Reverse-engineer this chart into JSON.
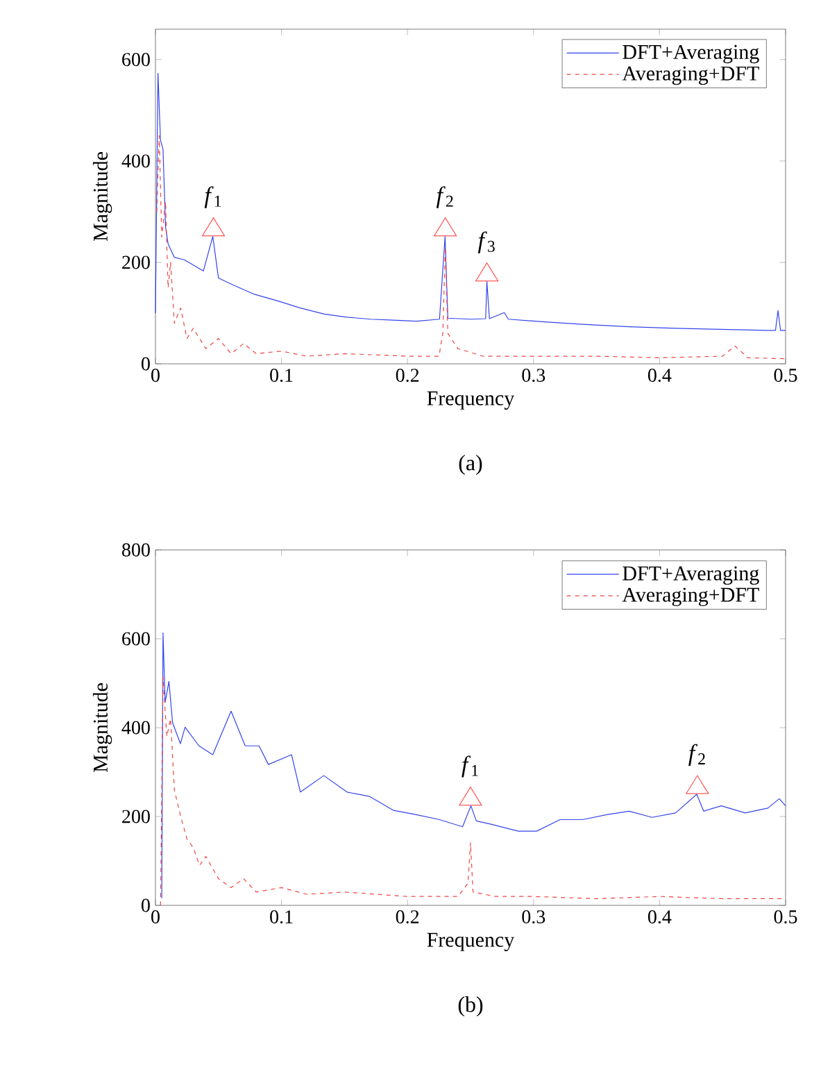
{
  "chart_data": [
    {
      "type": "line",
      "xlabel": "Frequency",
      "ylabel": "Magnitude",
      "xlim": [
        0,
        0.5
      ],
      "ylim": [
        0,
        660
      ],
      "xticks": [
        0,
        0.1,
        0.2,
        0.3,
        0.4,
        0.5
      ],
      "yticks": [
        0,
        200,
        400,
        600
      ],
      "legend": "top right",
      "grid": false,
      "series": [
        {
          "name": "DFT+Averaging",
          "color": "#3344ee",
          "line_style": "solid",
          "x": [
            0,
            0.002,
            0.004,
            0.006,
            0.008,
            0.01,
            0.015,
            0.023,
            0.038,
            0.0455,
            0.05,
            0.062,
            0.0786,
            0.097,
            0.115,
            0.134,
            0.152,
            0.171,
            0.189,
            0.207,
            0.2254,
            0.2298,
            0.232,
            0.25,
            0.262,
            0.263,
            0.265,
            0.2768,
            0.28,
            0.307,
            0.339,
            0.376,
            0.413,
            0.449,
            0.486,
            0.492,
            0.494,
            0.496,
            0.5
          ],
          "values": [
            100,
            573,
            441,
            423,
            270,
            237,
            210,
            205,
            183,
            251,
            169,
            155,
            137,
            124,
            110,
            98,
            92,
            88,
            86,
            84,
            88,
            251,
            90,
            88,
            89,
            162,
            89,
            101,
            88,
            83,
            78,
            73,
            70,
            68,
            66,
            66,
            105,
            66,
            66
          ]
        },
        {
          "name": "Averaging+DFT",
          "color": "#ee4444",
          "line_style": "dashed",
          "x": [
            0.001,
            0.003,
            0.005,
            0.008,
            0.01,
            0.012,
            0.015,
            0.02,
            0.025,
            0.03,
            0.04,
            0.05,
            0.06,
            0.07,
            0.08,
            0.1,
            0.12,
            0.15,
            0.2,
            0.225,
            0.228,
            0.23,
            0.232,
            0.24,
            0.26,
            0.3,
            0.35,
            0.4,
            0.45,
            0.46,
            0.47,
            0.5
          ],
          "values": [
            300,
            450,
            250,
            320,
            150,
            200,
            80,
            110,
            50,
            70,
            30,
            50,
            20,
            40,
            20,
            25,
            15,
            20,
            15,
            15,
            60,
            230,
            60,
            30,
            15,
            15,
            15,
            12,
            15,
            35,
            12,
            10
          ]
        }
      ],
      "annotations": [
        {
          "text": "*f*$_{1}$",
          "x": 0.046,
          "y": 251
        },
        {
          "text": "*f*$_{2}$",
          "x": 0.23,
          "y": 251
        },
        {
          "text": "*f*$_{3}$",
          "x": 0.263,
          "y": 162
        },
        "(a)"
      ]
    },
    {
      "type": "line",
      "xlabel": "Frequency",
      "ylabel": "Magnitude",
      "xlim": [
        0,
        0.5
      ],
      "ylim": [
        0,
        800
      ],
      "xticks": [
        0,
        0.1,
        0.2,
        0.3,
        0.4,
        0.5
      ],
      "yticks": [
        0,
        200,
        400,
        600,
        800
      ],
      "legend": "top right",
      "grid": false,
      "series": [
        {
          "name": "DFT+Averaging",
          "color": "#3344ee",
          "line_style": "solid",
          "x": [
            0.005,
            0.006,
            0.0077,
            0.0107,
            0.0136,
            0.0198,
            0.0235,
            0.0345,
            0.0455,
            0.06,
            0.0712,
            0.0822,
            0.0896,
            0.108,
            0.115,
            0.1336,
            0.152,
            0.17,
            0.1887,
            0.207,
            0.2254,
            0.2437,
            0.2503,
            0.2546,
            0.2657,
            0.288,
            0.3025,
            0.321,
            0.339,
            0.358,
            0.376,
            0.394,
            0.4127,
            0.4295,
            0.435,
            0.449,
            0.468,
            0.486,
            0.495,
            0.5
          ],
          "values": [
            16,
            613,
            457,
            504,
            411,
            364,
            401,
            359,
            339,
            437,
            359,
            359,
            317,
            339,
            255,
            292,
            255,
            245,
            214,
            204,
            193,
            177,
            224,
            190,
            183,
            167,
            167,
            193,
            193,
            204,
            212,
            198,
            208,
            250,
            212,
            224,
            208,
            219,
            240,
            224
          ]
        },
        {
          "name": "Averaging+DFT",
          "color": "#ee4444",
          "line_style": "dashed",
          "x": [
            0.004,
            0.006,
            0.009,
            0.012,
            0.015,
            0.02,
            0.025,
            0.03,
            0.035,
            0.04,
            0.05,
            0.06,
            0.07,
            0.08,
            0.1,
            0.12,
            0.15,
            0.2,
            0.24,
            0.248,
            0.25,
            0.252,
            0.27,
            0.3,
            0.35,
            0.4,
            0.45,
            0.5
          ],
          "values": [
            0,
            514,
            380,
            420,
            260,
            200,
            150,
            130,
            90,
            110,
            60,
            40,
            60,
            30,
            40,
            25,
            30,
            20,
            20,
            50,
            141,
            30,
            20,
            20,
            15,
            20,
            15,
            15
          ]
        }
      ],
      "annotations": [
        {
          "text": "*f*$_{1}$",
          "x": 0.25,
          "y": 224
        },
        {
          "text": "*f*$_{2}$",
          "x": 0.43,
          "y": 250
        },
        "(b)"
      ]
    }
  ]
}
